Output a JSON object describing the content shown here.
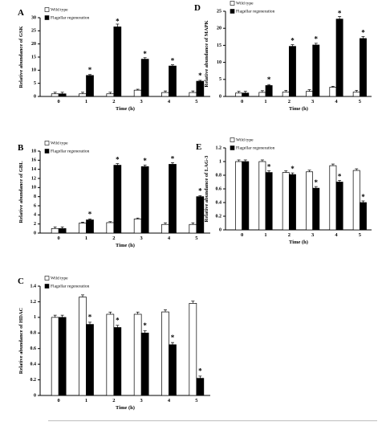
{
  "legend": {
    "wild_type": "Wild type",
    "flagellar": "Flagellar regeneration"
  },
  "colors": {
    "wild_type_fill": "#ffffff",
    "flagellar_fill": "#000000",
    "axis": "#000000"
  },
  "chart_data": [
    {
      "id": "A",
      "panel_label": "A",
      "type": "bar",
      "ylabel": "Relative abundance of GSK",
      "xlabel": "Time (h)",
      "categories": [
        "0",
        "1",
        "2",
        "3",
        "4",
        "5"
      ],
      "ylim": [
        0,
        30
      ],
      "yticks": [
        0,
        5,
        10,
        15,
        20,
        25,
        30
      ],
      "series": [
        {
          "name": "Wild type",
          "values": [
            1,
            1,
            1,
            2.4,
            1.5,
            1.5
          ]
        },
        {
          "name": "Flagellar regeneration",
          "values": [
            1,
            8,
            26.5,
            14.2,
            11.6,
            5.8
          ]
        }
      ],
      "significant": [
        1,
        2,
        3,
        4,
        5
      ],
      "grid": false,
      "legend_position": "top-left"
    },
    {
      "id": "D",
      "panel_label": "D",
      "type": "bar",
      "ylabel": "Relative abundance of MAPK",
      "xlabel": "Time (h)",
      "categories": [
        "0",
        "1",
        "2",
        "3",
        "4",
        "5"
      ],
      "ylim": [
        0,
        25
      ],
      "yticks": [
        0,
        5,
        10,
        15,
        20,
        25
      ],
      "series": [
        {
          "name": "Wild type",
          "values": [
            1,
            1.2,
            1.3,
            1.5,
            2.7,
            1.3
          ]
        },
        {
          "name": "Flagellar regeneration",
          "values": [
            1,
            3.2,
            14.7,
            15.1,
            22.7,
            17
          ]
        }
      ],
      "significant": [
        1,
        2,
        3,
        4,
        5
      ],
      "grid": false,
      "legend_position": "top-left"
    },
    {
      "id": "B",
      "panel_label": "B",
      "type": "bar",
      "ylabel": "Relative abundance of GBL",
      "xlabel": "Time (h)",
      "categories": [
        "0",
        "1",
        "2",
        "3",
        "4",
        "5"
      ],
      "ylim": [
        0,
        18
      ],
      "yticks": [
        0,
        2,
        4,
        6,
        8,
        10,
        12,
        14,
        16,
        18
      ],
      "series": [
        {
          "name": "Wild type",
          "values": [
            1,
            2.2,
            2.3,
            3.1,
            1.9,
            1.9
          ]
        },
        {
          "name": "Flagellar regeneration",
          "values": [
            1,
            2.9,
            14.9,
            14.6,
            15.1,
            8
          ]
        }
      ],
      "significant": [
        1,
        2,
        3,
        4,
        5
      ],
      "grid": false,
      "legend_position": "top-left"
    },
    {
      "id": "E",
      "panel_label": "E",
      "type": "bar",
      "ylabel": "Relative abundance of LAG-3",
      "xlabel": "Time (h)",
      "categories": [
        "0",
        "1",
        "2",
        "3",
        "4",
        "5"
      ],
      "ylim": [
        0,
        1.2
      ],
      "yticks": [
        0,
        0.2,
        0.4,
        0.6,
        0.8,
        1,
        1.2
      ],
      "series": [
        {
          "name": "Wild type",
          "values": [
            1,
            1,
            0.84,
            0.85,
            0.94,
            0.87
          ]
        },
        {
          "name": "Flagellar regeneration",
          "values": [
            1,
            0.84,
            0.81,
            0.61,
            0.7,
            0.4
          ]
        }
      ],
      "significant": [
        1,
        2,
        3,
        4,
        5
      ],
      "grid": false,
      "legend_position": "top-left"
    },
    {
      "id": "C",
      "panel_label": "C",
      "type": "bar",
      "ylabel": "Relative abundance of HDAC",
      "xlabel": "Time (h)",
      "categories": [
        "0",
        "1",
        "2",
        "3",
        "4",
        "5"
      ],
      "ylim": [
        0,
        1.4
      ],
      "yticks": [
        0,
        0.2,
        0.4,
        0.6,
        0.8,
        1,
        1.2,
        1.4
      ],
      "series": [
        {
          "name": "Wild type",
          "values": [
            1,
            1.26,
            1.04,
            1.04,
            1.07,
            1.18
          ]
        },
        {
          "name": "Flagellar regeneration",
          "values": [
            1,
            0.91,
            0.87,
            0.8,
            0.65,
            0.22
          ]
        }
      ],
      "significant": [
        1,
        2,
        3,
        4,
        5
      ],
      "grid": false,
      "legend_position": "top-left"
    }
  ]
}
